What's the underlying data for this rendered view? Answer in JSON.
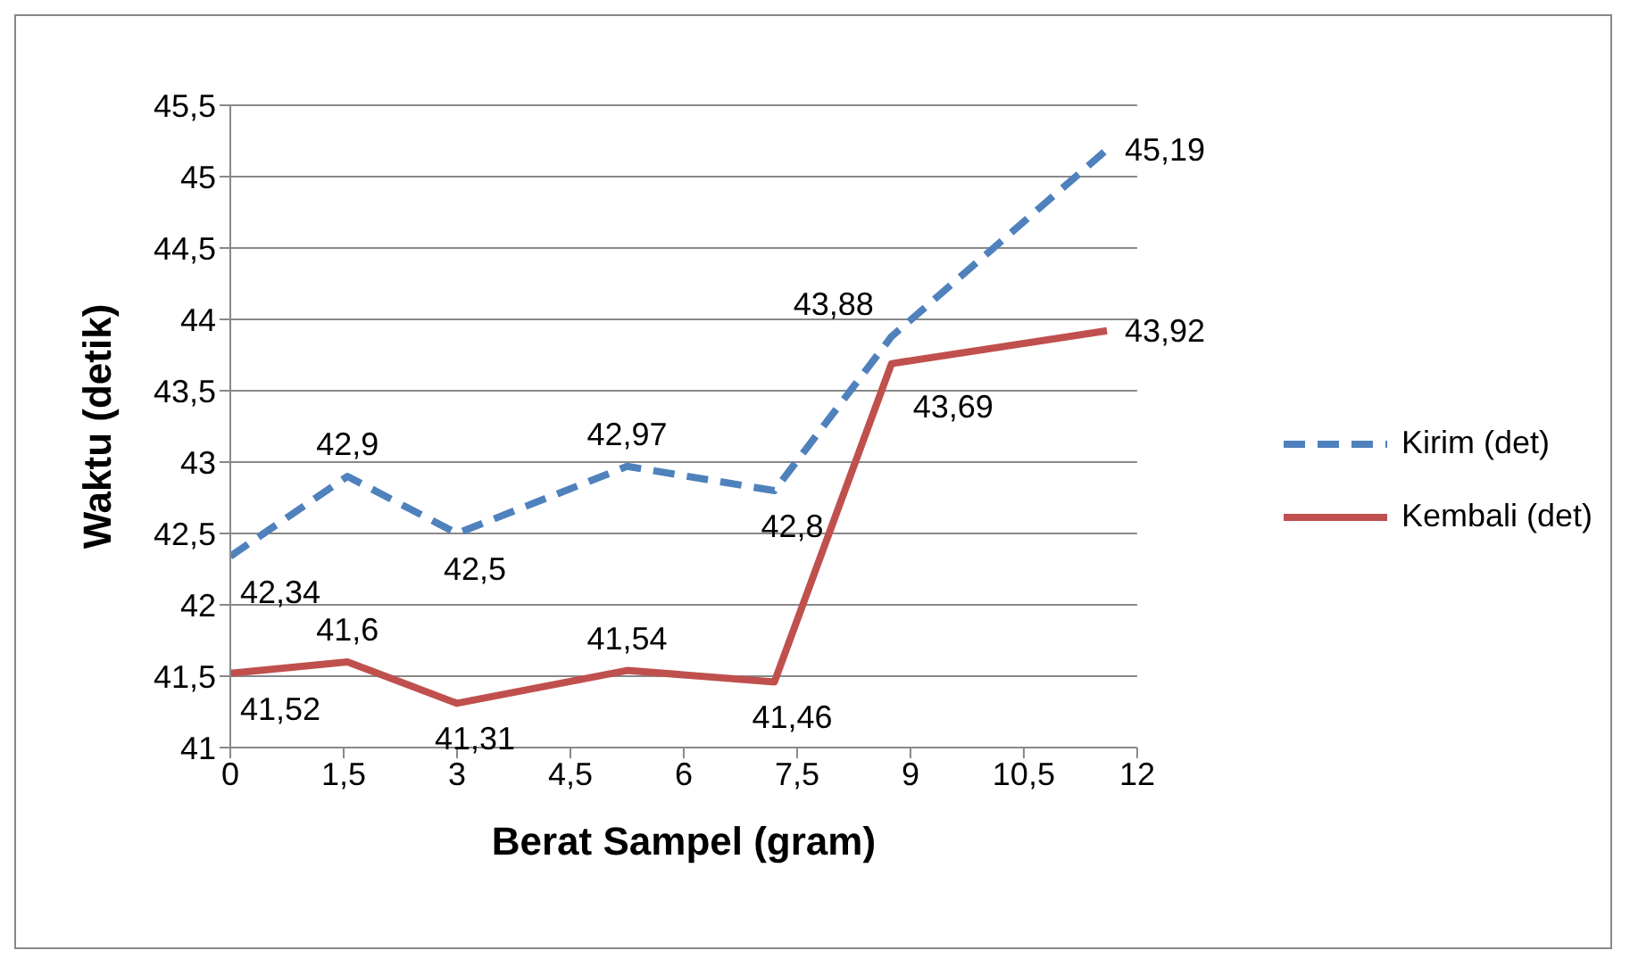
{
  "chart_data": {
    "type": "line",
    "xlabel": "Berat Sampel (gram)",
    "ylabel": "Waktu (detik)",
    "x": [
      0,
      1.55,
      3,
      5.25,
      7.2,
      8.75,
      11.6
    ],
    "series": [
      {
        "name": "Kirim (det)",
        "color": "#4f81bd",
        "values": [
          42.34,
          42.9,
          42.5,
          42.97,
          42.8,
          43.88,
          45.19
        ],
        "value_labels": [
          "42,34",
          "42,9",
          "42,5",
          "42,97",
          "42,8",
          "43,88",
          "45,19"
        ],
        "line_style": "dashed"
      },
      {
        "name": "Kembali (det)",
        "color": "#c0504d",
        "values": [
          41.52,
          41.6,
          41.31,
          41.54,
          41.46,
          43.69,
          43.92
        ],
        "value_labels": [
          "41,52",
          "41,6",
          "41,31",
          "41,54",
          "41,46",
          "43,69",
          "43,92"
        ],
        "line_style": "solid"
      }
    ],
    "xlim": [
      0,
      12
    ],
    "xticks": [
      0,
      {
        "value": 1.5,
        "label": "1,5"
      },
      3,
      {
        "value": 4.5,
        "label": "4,5"
      },
      6,
      {
        "value": 7.5,
        "label": "7,5"
      },
      9,
      {
        "value": 10.5,
        "label": "10,5"
      },
      12
    ],
    "ylim": [
      41,
      45.5
    ],
    "yticks": [
      41,
      {
        "value": 41.5,
        "label": "41,5"
      },
      42,
      {
        "value": 42.5,
        "label": "42,5"
      },
      43,
      {
        "value": 43.5,
        "label": "43,5"
      },
      44,
      {
        "value": 44.5,
        "label": "44,5"
      },
      45,
      {
        "value": 45.5,
        "label": "45,5"
      }
    ],
    "grid": "y",
    "legend": "right",
    "marker": "none",
    "data_labels": true
  }
}
